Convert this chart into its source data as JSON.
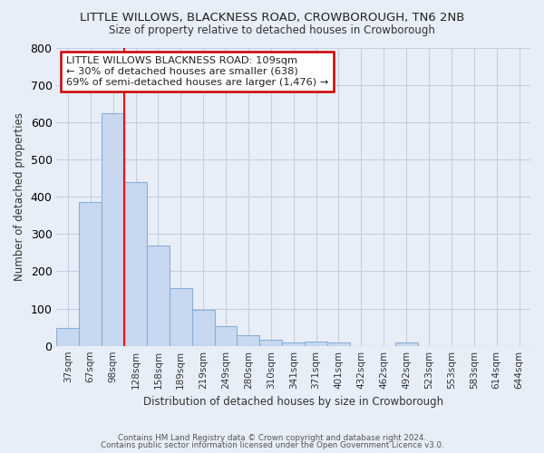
{
  "title": "LITTLE WILLOWS, BLACKNESS ROAD, CROWBOROUGH, TN6 2NB",
  "subtitle": "Size of property relative to detached houses in Crowborough",
  "xlabel": "Distribution of detached houses by size in Crowborough",
  "ylabel": "Number of detached properties",
  "categories": [
    "37sqm",
    "67sqm",
    "98sqm",
    "128sqm",
    "158sqm",
    "189sqm",
    "219sqm",
    "249sqm",
    "280sqm",
    "310sqm",
    "341sqm",
    "371sqm",
    "401sqm",
    "432sqm",
    "462sqm",
    "492sqm",
    "523sqm",
    "553sqm",
    "583sqm",
    "614sqm",
    "644sqm"
  ],
  "values": [
    47,
    385,
    625,
    440,
    268,
    155,
    97,
    52,
    28,
    16,
    10,
    11,
    10,
    0,
    0,
    8,
    0,
    0,
    0,
    0,
    0
  ],
  "bar_color": "#c8d8f0",
  "bar_edge_color": "#8ab0d8",
  "redline_x": 2.5,
  "annotation_text": "LITTLE WILLOWS BLACKNESS ROAD: 109sqm\n← 30% of detached houses are smaller (638)\n69% of semi-detached houses are larger (1,476) →",
  "annotation_box_color": "#ffffff",
  "annotation_box_edge": "#cc0000",
  "ylim": [
    0,
    800
  ],
  "yticks": [
    0,
    100,
    200,
    300,
    400,
    500,
    600,
    700,
    800
  ],
  "fig_bg": "#e8eef8",
  "plot_bg": "#e8eef8",
  "grid_color": "#c5cfe0",
  "footer_line1": "Contains HM Land Registry data © Crown copyright and database right 2024.",
  "footer_line2": "Contains public sector information licensed under the Open Government Licence v3.0."
}
